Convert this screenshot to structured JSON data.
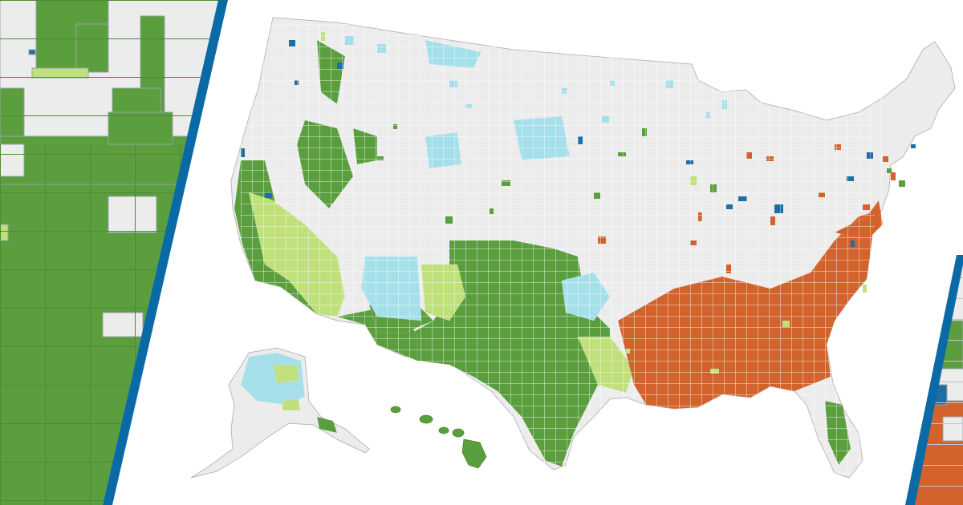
{
  "legend_colors": {
    "none": "#ececec",
    "green_dark": "#5a9e3e",
    "green_light": "#bfe07a",
    "blue_light": "#a5e0ea",
    "blue_dark": "#1f6ea3",
    "orange": "#d2632c"
  },
  "frame_color": "#0a6aa5",
  "icons": [
    "us-county-map-icon"
  ]
}
